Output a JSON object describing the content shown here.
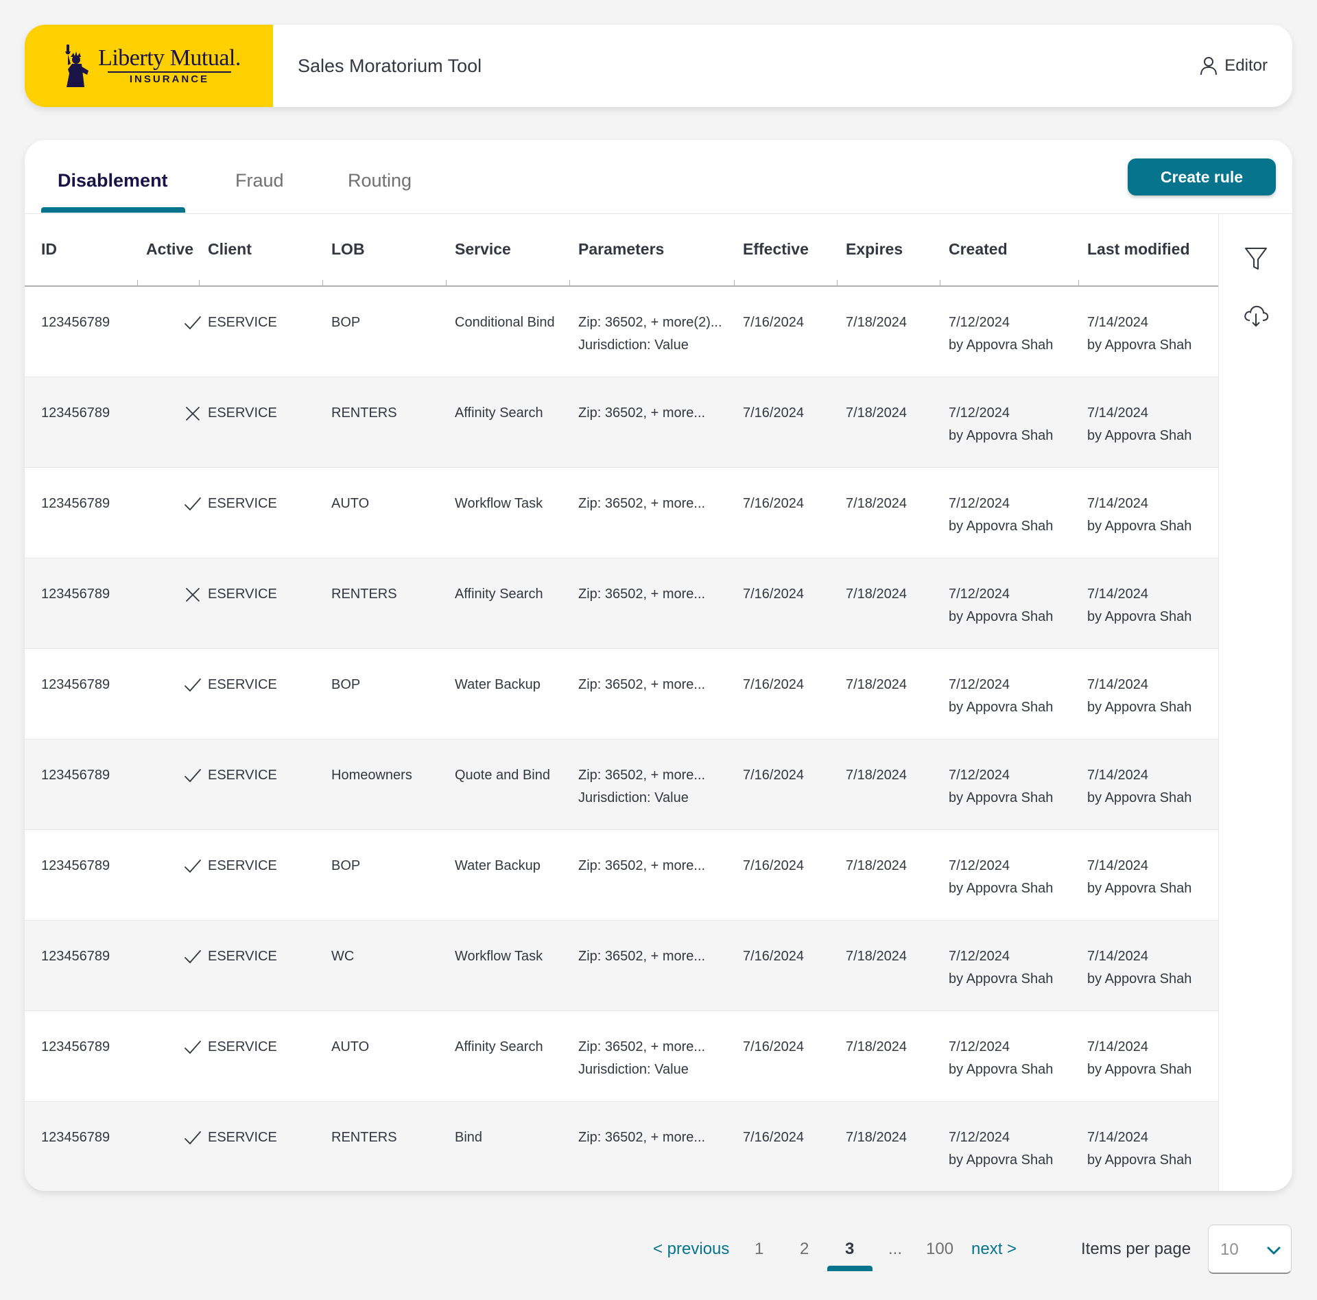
{
  "header": {
    "logo_brand": "Liberty Mutual.",
    "logo_sub": "INSURANCE",
    "app_title": "Sales Moratorium Tool",
    "user_role": "Editor"
  },
  "tabs": [
    {
      "label": "Disablement",
      "active": true
    },
    {
      "label": "Fraud",
      "active": false
    },
    {
      "label": "Routing",
      "active": false
    }
  ],
  "create_rule_label": "Create rule",
  "table": {
    "columns": [
      "ID",
      "Active",
      "Client",
      "LOB",
      "Service",
      "Parameters",
      "Effective",
      "Expires",
      "Created",
      "Last modified"
    ],
    "rows": [
      {
        "id": "123456789",
        "active": true,
        "client": "ESERVICE",
        "lob": "BOP",
        "service": "Conditional Bind",
        "params1": "Zip: 36502, + more(2)...",
        "params2": "Jurisdiction: Value",
        "effective": "7/16/2024",
        "expires": "7/18/2024",
        "created": "7/12/2024",
        "created_by": "by Appovra Shah",
        "modified": "7/14/2024",
        "modified_by": "by Appovra Shah"
      },
      {
        "id": "123456789",
        "active": false,
        "client": "ESERVICE",
        "lob": "RENTERS",
        "service": "Affinity Search",
        "params1": "Zip: 36502, + more...",
        "params2": "",
        "effective": "7/16/2024",
        "expires": "7/18/2024",
        "created": "7/12/2024",
        "created_by": "by Appovra Shah",
        "modified": "7/14/2024",
        "modified_by": "by Appovra Shah"
      },
      {
        "id": "123456789",
        "active": true,
        "client": "ESERVICE",
        "lob": "AUTO",
        "service": "Workflow Task",
        "params1": "Zip: 36502, + more...",
        "params2": "",
        "effective": "7/16/2024",
        "expires": "7/18/2024",
        "created": "7/12/2024",
        "created_by": "by Appovra Shah",
        "modified": "7/14/2024",
        "modified_by": "by Appovra Shah"
      },
      {
        "id": "123456789",
        "active": false,
        "client": "ESERVICE",
        "lob": "RENTERS",
        "service": "Affinity Search",
        "params1": "Zip: 36502, + more...",
        "params2": "",
        "effective": "7/16/2024",
        "expires": "7/18/2024",
        "created": "7/12/2024",
        "created_by": "by Appovra Shah",
        "modified": "7/14/2024",
        "modified_by": "by Appovra Shah"
      },
      {
        "id": "123456789",
        "active": true,
        "client": "ESERVICE",
        "lob": "BOP",
        "service": "Water Backup",
        "params1": "Zip: 36502, + more...",
        "params2": "",
        "effective": "7/16/2024",
        "expires": "7/18/2024",
        "created": "7/12/2024",
        "created_by": "by Appovra Shah",
        "modified": "7/14/2024",
        "modified_by": "by Appovra Shah"
      },
      {
        "id": "123456789",
        "active": true,
        "client": "ESERVICE",
        "lob": "Homeowners",
        "service": "Quote and Bind",
        "params1": "Zip: 36502, + more...",
        "params2": "Jurisdiction: Value",
        "effective": "7/16/2024",
        "expires": "7/18/2024",
        "created": "7/12/2024",
        "created_by": "by Appovra Shah",
        "modified": "7/14/2024",
        "modified_by": "by Appovra Shah"
      },
      {
        "id": "123456789",
        "active": true,
        "client": "ESERVICE",
        "lob": "BOP",
        "service": "Water Backup",
        "params1": "Zip: 36502, + more...",
        "params2": "",
        "effective": "7/16/2024",
        "expires": "7/18/2024",
        "created": "7/12/2024",
        "created_by": "by Appovra Shah",
        "modified": "7/14/2024",
        "modified_by": "by Appovra Shah"
      },
      {
        "id": "123456789",
        "active": true,
        "client": "ESERVICE",
        "lob": "WC",
        "service": "Workflow Task",
        "params1": "Zip: 36502, + more...",
        "params2": "",
        "effective": "7/16/2024",
        "expires": "7/18/2024",
        "created": "7/12/2024",
        "created_by": "by Appovra Shah",
        "modified": "7/14/2024",
        "modified_by": "by Appovra Shah"
      },
      {
        "id": "123456789",
        "active": true,
        "client": "ESERVICE",
        "lob": "AUTO",
        "service": "Affinity Search",
        "params1": "Zip: 36502, + more...",
        "params2": "Jurisdiction: Value",
        "effective": "7/16/2024",
        "expires": "7/18/2024",
        "created": "7/12/2024",
        "created_by": "by Appovra Shah",
        "modified": "7/14/2024",
        "modified_by": "by Appovra Shah"
      },
      {
        "id": "123456789",
        "active": true,
        "client": "ESERVICE",
        "lob": "RENTERS",
        "service": "Bind",
        "params1": "Zip: 36502, + more...",
        "params2": "",
        "effective": "7/16/2024",
        "expires": "7/18/2024",
        "created": "7/12/2024",
        "created_by": "by Appovra Shah",
        "modified": "7/14/2024",
        "modified_by": "by Appovra Shah"
      }
    ]
  },
  "side_icons": [
    "filter-icon",
    "cloud-download-icon"
  ],
  "pagination": {
    "previous": "< previous",
    "pages": [
      "1",
      "2",
      "3",
      "...",
      "100"
    ],
    "current": "3",
    "next": "next >",
    "items_per_page_label": "Items per page",
    "items_per_page_value": "10"
  },
  "colors": {
    "brand_yellow": "#ffd000",
    "brand_navy": "#1a1446",
    "accent_teal": "#06748c",
    "row_alt": "#f5f5f5"
  }
}
